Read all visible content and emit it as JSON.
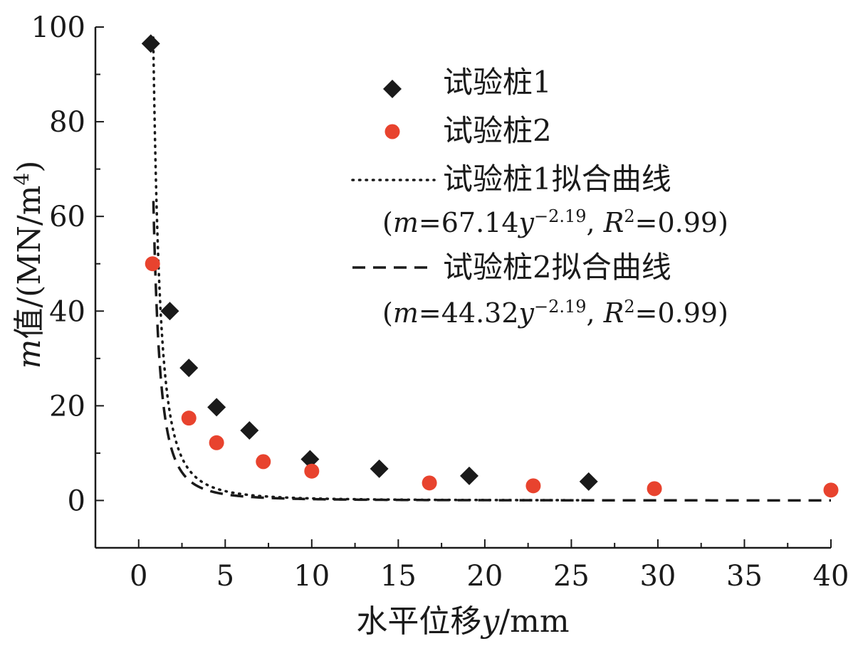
{
  "chart_data": {
    "type": "scatter",
    "xlabel": {
      "prefix": "水平位移",
      "var": "y",
      "unit": "/mm"
    },
    "ylabel": {
      "var": "m",
      "prefix": "值/(MN/m",
      "sup": "4",
      "suffix": ")"
    },
    "xlim": [
      -2.5,
      40
    ],
    "ylim": [
      -10,
      100
    ],
    "xticks": [
      0,
      5,
      10,
      15,
      20,
      25,
      30,
      35,
      40
    ],
    "yticks": [
      0,
      20,
      40,
      60,
      80,
      100
    ],
    "legend_position": "top-right",
    "series": [
      {
        "name": "试验桩1",
        "marker": "diamond",
        "color": "#1a1a1a",
        "points": [
          {
            "x": 0.7,
            "y": 96.5
          },
          {
            "x": 1.8,
            "y": 40
          },
          {
            "x": 2.9,
            "y": 28
          },
          {
            "x": 4.5,
            "y": 19.7
          },
          {
            "x": 6.4,
            "y": 14.8
          },
          {
            "x": 9.9,
            "y": 8.7
          },
          {
            "x": 13.9,
            "y": 6.7
          },
          {
            "x": 19.1,
            "y": 5.2
          },
          {
            "x": 26.0,
            "y": 4.0
          }
        ]
      },
      {
        "name": "试验桩2",
        "marker": "circle",
        "color": "#e8432e",
        "points": [
          {
            "x": 0.8,
            "y": 50
          },
          {
            "x": 2.9,
            "y": 17.4
          },
          {
            "x": 4.5,
            "y": 12.2
          },
          {
            "x": 7.2,
            "y": 8.2
          },
          {
            "x": 10.0,
            "y": 6.2
          },
          {
            "x": 16.8,
            "y": 3.7
          },
          {
            "x": 22.8,
            "y": 3.1
          },
          {
            "x": 29.8,
            "y": 2.5
          },
          {
            "x": 40.0,
            "y": 2.2
          }
        ]
      }
    ],
    "fits": [
      {
        "name": "试验桩1拟合曲线",
        "style": "dotted",
        "color": "#1a1a1a",
        "coef": 67.14,
        "exponent": -2.19,
        "x_range": [
          0.7,
          26
        ],
        "eq": {
          "m": "m",
          "eq": "=67.14",
          "y": "y",
          "exp": "−2.19",
          "sep": ", ",
          "r": "R",
          "r_sup": "2",
          "r_val": "=0.99"
        }
      },
      {
        "name": "试验桩2拟合曲线",
        "style": "dashed",
        "color": "#1a1a1a",
        "coef": 44.32,
        "exponent": -2.19,
        "x_range": [
          0.85,
          40
        ],
        "eq": {
          "m": "m",
          "eq": "=44.32",
          "y": "y",
          "exp": "−2.19",
          "sep": ", ",
          "r": "R",
          "r_sup": "2",
          "r_val": "=0.99"
        }
      }
    ]
  }
}
